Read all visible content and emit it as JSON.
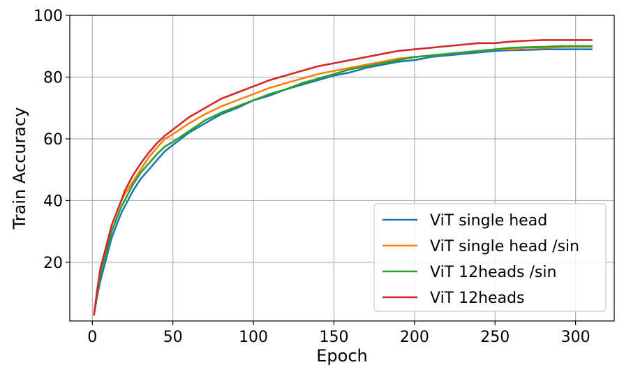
{
  "chart_data": {
    "type": "line",
    "title": "",
    "xlabel": "Epoch",
    "ylabel": "Train Accuracy",
    "xlim": [
      -14,
      324
    ],
    "ylim": [
      1,
      100
    ],
    "xticks": [
      0,
      50,
      100,
      150,
      200,
      250,
      300
    ],
    "yticks": [
      20,
      40,
      60,
      80,
      100
    ],
    "grid": true,
    "legend_position": "bottom-right",
    "x": [
      1,
      3,
      5,
      8,
      10,
      12,
      15,
      18,
      20,
      25,
      30,
      35,
      40,
      45,
      50,
      60,
      70,
      80,
      90,
      100,
      110,
      120,
      130,
      140,
      150,
      160,
      170,
      180,
      190,
      200,
      210,
      220,
      230,
      240,
      250,
      260,
      270,
      280,
      290,
      300,
      310
    ],
    "series": [
      {
        "name": "ViT single head",
        "color": "#1f77b4",
        "values": [
          3,
          9,
          14,
          20,
          24,
          28,
          32,
          36,
          38,
          43,
          47,
          50,
          53,
          56,
          58,
          62,
          65,
          68,
          70,
          72.5,
          74,
          76,
          77.5,
          79,
          80.5,
          81.5,
          83,
          84,
          85,
          85.5,
          86.5,
          87,
          87.5,
          88,
          88.5,
          88.7,
          88.8,
          89,
          89,
          89,
          89
        ]
      },
      {
        "name": "ViT single head /sin",
        "color": "#ff7f0e",
        "values": [
          3,
          10,
          17,
          24,
          28,
          32,
          36,
          40,
          42,
          46,
          50,
          54,
          57,
          60,
          61.5,
          65,
          68,
          70.5,
          72.5,
          74.5,
          76.5,
          78,
          79.5,
          81,
          82,
          83,
          84,
          85,
          86,
          86.5,
          87,
          87.5,
          88,
          88.5,
          89,
          89,
          89.5,
          89.5,
          89.7,
          89.8,
          89.8
        ]
      },
      {
        "name": "ViT 12heads /sin",
        "color": "#2ca02c",
        "values": [
          3,
          10,
          16,
          22,
          26,
          30,
          34,
          38,
          40,
          45,
          49,
          52,
          55,
          57.5,
          59,
          62.5,
          66,
          68.5,
          70.5,
          72.5,
          74.5,
          76,
          78,
          79.5,
          81,
          82.5,
          83.5,
          84.5,
          85.5,
          86.5,
          87,
          87.5,
          88,
          88.5,
          89,
          89.5,
          89.7,
          89.8,
          90,
          90,
          90
        ]
      },
      {
        "name": "ViT 12heads",
        "color": "#d62728",
        "values": [
          3,
          11,
          18,
          24,
          28,
          32,
          36,
          40,
          43,
          48,
          52,
          55.5,
          58.5,
          61,
          63,
          67,
          70,
          73,
          75,
          77,
          79,
          80.5,
          82,
          83.5,
          84.5,
          85.5,
          86.5,
          87.5,
          88.5,
          89,
          89.5,
          90,
          90.5,
          91,
          91,
          91.5,
          91.8,
          92,
          92,
          92,
          92
        ]
      }
    ]
  }
}
